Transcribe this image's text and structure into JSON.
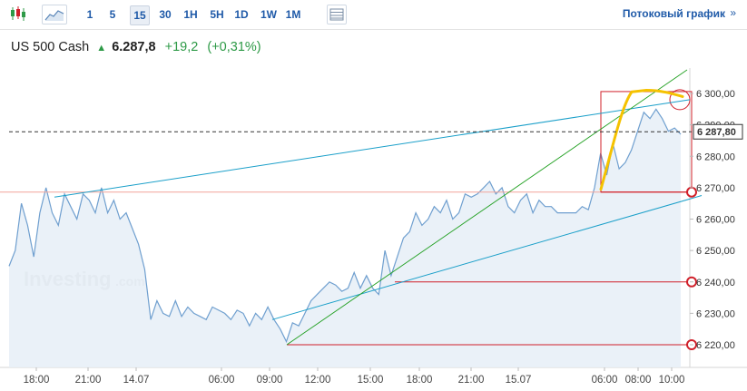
{
  "toolbar": {
    "timeframes": [
      "1",
      "5",
      "15",
      "30",
      "1H",
      "5H",
      "1D",
      "1W",
      "1M"
    ],
    "active_timeframe": "15",
    "stream_label": "Потоковый график",
    "stream_chevron": "»"
  },
  "quote": {
    "name": "US 500 Cash",
    "arrow": "▲",
    "price": "6.287,8",
    "change": "+19,2",
    "change_pct": "(+0,31%)"
  },
  "watermark": "Investing",
  "watermark_suffix": ".com",
  "colors": {
    "accent": "#1f5aa8",
    "positive": "#2e9a47",
    "area_line": "#6f9fcf",
    "area_fill": "#e6eef7",
    "trend_blue": "#1a9fc9",
    "trend_green": "#22a022",
    "level_red": "#d0202a",
    "annotation_yellow": "#f5c200"
  },
  "chart_data": {
    "type": "area",
    "series": [
      {
        "values": [
          6245,
          6250,
          6265,
          6258,
          6248,
          6262,
          6270,
          6262,
          6258,
          6268,
          6264,
          6260,
          6268,
          6266,
          6262,
          6270,
          6262,
          6266,
          6260,
          6262,
          6257,
          6252,
          6244,
          6228,
          6234,
          6230,
          6229,
          6234,
          6229,
          6232,
          6230,
          6229,
          6228,
          6232,
          6231,
          6230,
          6228,
          6231,
          6230,
          6226,
          6230,
          6228,
          6232,
          6228,
          6225,
          6221,
          6227,
          6226,
          6230,
          6234,
          6236,
          6238,
          6240,
          6239,
          6237,
          6238,
          6243,
          6238,
          6242,
          6238,
          6236,
          6250,
          6242,
          6248,
          6254,
          6256,
          6262,
          6258,
          6260,
          6264,
          6262,
          6266,
          6260,
          6262,
          6268,
          6267,
          6268,
          6270,
          6272,
          6268,
          6270,
          6264,
          6262,
          6266,
          6268,
          6262,
          6266,
          6264,
          6264,
          6262,
          6262,
          6262,
          6262,
          6264,
          6263,
          6270,
          6281,
          6274,
          6284,
          6276,
          6278,
          6282,
          6288,
          6294,
          6292,
          6295,
          6292,
          6288,
          6289,
          6287
        ]
      }
    ],
    "y_ticks": [
      "6 220,00",
      "6 230,00",
      "6 240,00",
      "6 250,00",
      "6 260,00",
      "6 270,00",
      "6 280,00",
      "6 290,00",
      "6 300,00"
    ],
    "y_tick_values": [
      6220,
      6230,
      6240,
      6250,
      6260,
      6270,
      6280,
      6290,
      6300
    ],
    "ylim": [
      6213,
      6305
    ],
    "x_ticks": [
      "18:00",
      "21:00",
      "14.07",
      "06:00",
      "09:00",
      "12:00",
      "15:00",
      "18:00",
      "21:00",
      "15.07",
      "06:00",
      "08:00",
      "10:00"
    ],
    "current_price_label": "6 287,80",
    "current_price": 6287.8,
    "horizontal_levels": [
      6268.5,
      6240,
      6220
    ],
    "grid": false
  }
}
